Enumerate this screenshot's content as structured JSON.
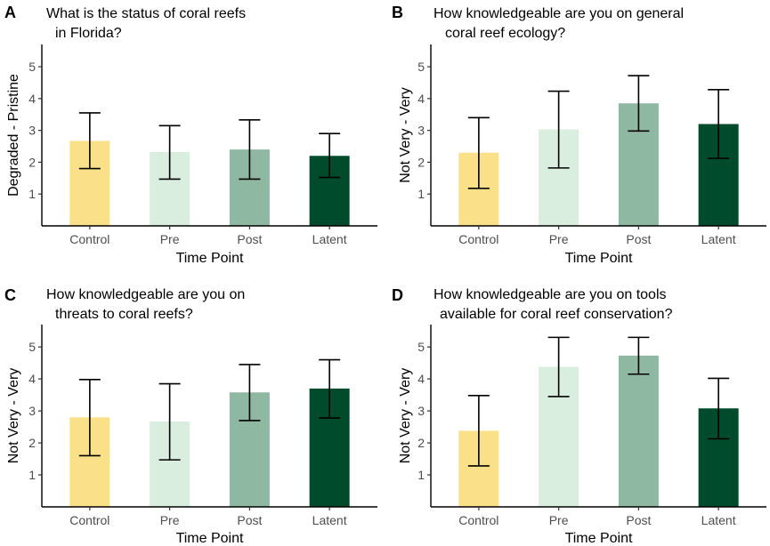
{
  "chart_data": [
    {
      "panel": "A",
      "type": "bar",
      "title_lines": [
        "What is the status of coral reefs",
        "in Florida?"
      ],
      "xlabel": "Time Point",
      "ylabel": "Degraded - Pristine",
      "ylim": [
        0,
        5.7
      ],
      "yticks": [
        1,
        2,
        3,
        4,
        5
      ],
      "categories": [
        "Control",
        "Pre",
        "Post",
        "Latent"
      ],
      "values": [
        2.67,
        2.32,
        2.4,
        2.2
      ],
      "error_low": [
        1.8,
        1.47,
        1.47,
        1.52
      ],
      "error_high": [
        3.55,
        3.15,
        3.33,
        2.9
      ],
      "colors": [
        "#fbe08a",
        "#d9eedf",
        "#8fb8a2",
        "#004b2b"
      ]
    },
    {
      "panel": "B",
      "type": "bar",
      "title_lines": [
        "How knowledgeable are you on general",
        "coral reef ecology?"
      ],
      "xlabel": "Time Point",
      "ylabel": "Not Very - Very",
      "ylim": [
        0,
        5.7
      ],
      "yticks": [
        1,
        2,
        3,
        4,
        5
      ],
      "categories": [
        "Control",
        "Pre",
        "Post",
        "Latent"
      ],
      "values": [
        2.3,
        3.03,
        3.85,
        3.2
      ],
      "error_low": [
        1.18,
        1.82,
        2.98,
        2.12
      ],
      "error_high": [
        3.4,
        4.23,
        4.72,
        4.28
      ],
      "colors": [
        "#fbe08a",
        "#d9eedf",
        "#8fb8a2",
        "#004b2b"
      ]
    },
    {
      "panel": "C",
      "type": "bar",
      "title_lines": [
        "How knowledgeable are you on",
        "threats to coral reefs?"
      ],
      "xlabel": "Time Point",
      "ylabel": "Not Very - Very",
      "ylim": [
        0,
        5.7
      ],
      "yticks": [
        1,
        2,
        3,
        4,
        5
      ],
      "categories": [
        "Control",
        "Pre",
        "Post",
        "Latent"
      ],
      "values": [
        2.8,
        2.67,
        3.58,
        3.7
      ],
      "error_low": [
        1.6,
        1.47,
        2.7,
        2.78
      ],
      "error_high": [
        3.98,
        3.85,
        4.45,
        4.6
      ],
      "colors": [
        "#fbe08a",
        "#d9eedf",
        "#8fb8a2",
        "#004b2b"
      ]
    },
    {
      "panel": "D",
      "type": "bar",
      "title_lines": [
        "How knowledgeable are you on tools",
        "available for coral reef conservation?"
      ],
      "xlabel": "Time Point",
      "ylabel": "Not Very - Very",
      "ylim": [
        0,
        5.7
      ],
      "yticks": [
        1,
        2,
        3,
        4,
        5
      ],
      "categories": [
        "Control",
        "Pre",
        "Post",
        "Latent"
      ],
      "values": [
        2.38,
        4.38,
        4.73,
        3.08
      ],
      "error_low": [
        1.28,
        3.45,
        4.15,
        2.13
      ],
      "error_high": [
        3.48,
        5.3,
        5.3,
        4.02
      ],
      "colors": [
        "#fbe08a",
        "#d9eedf",
        "#8fb8a2",
        "#004b2b"
      ]
    }
  ]
}
